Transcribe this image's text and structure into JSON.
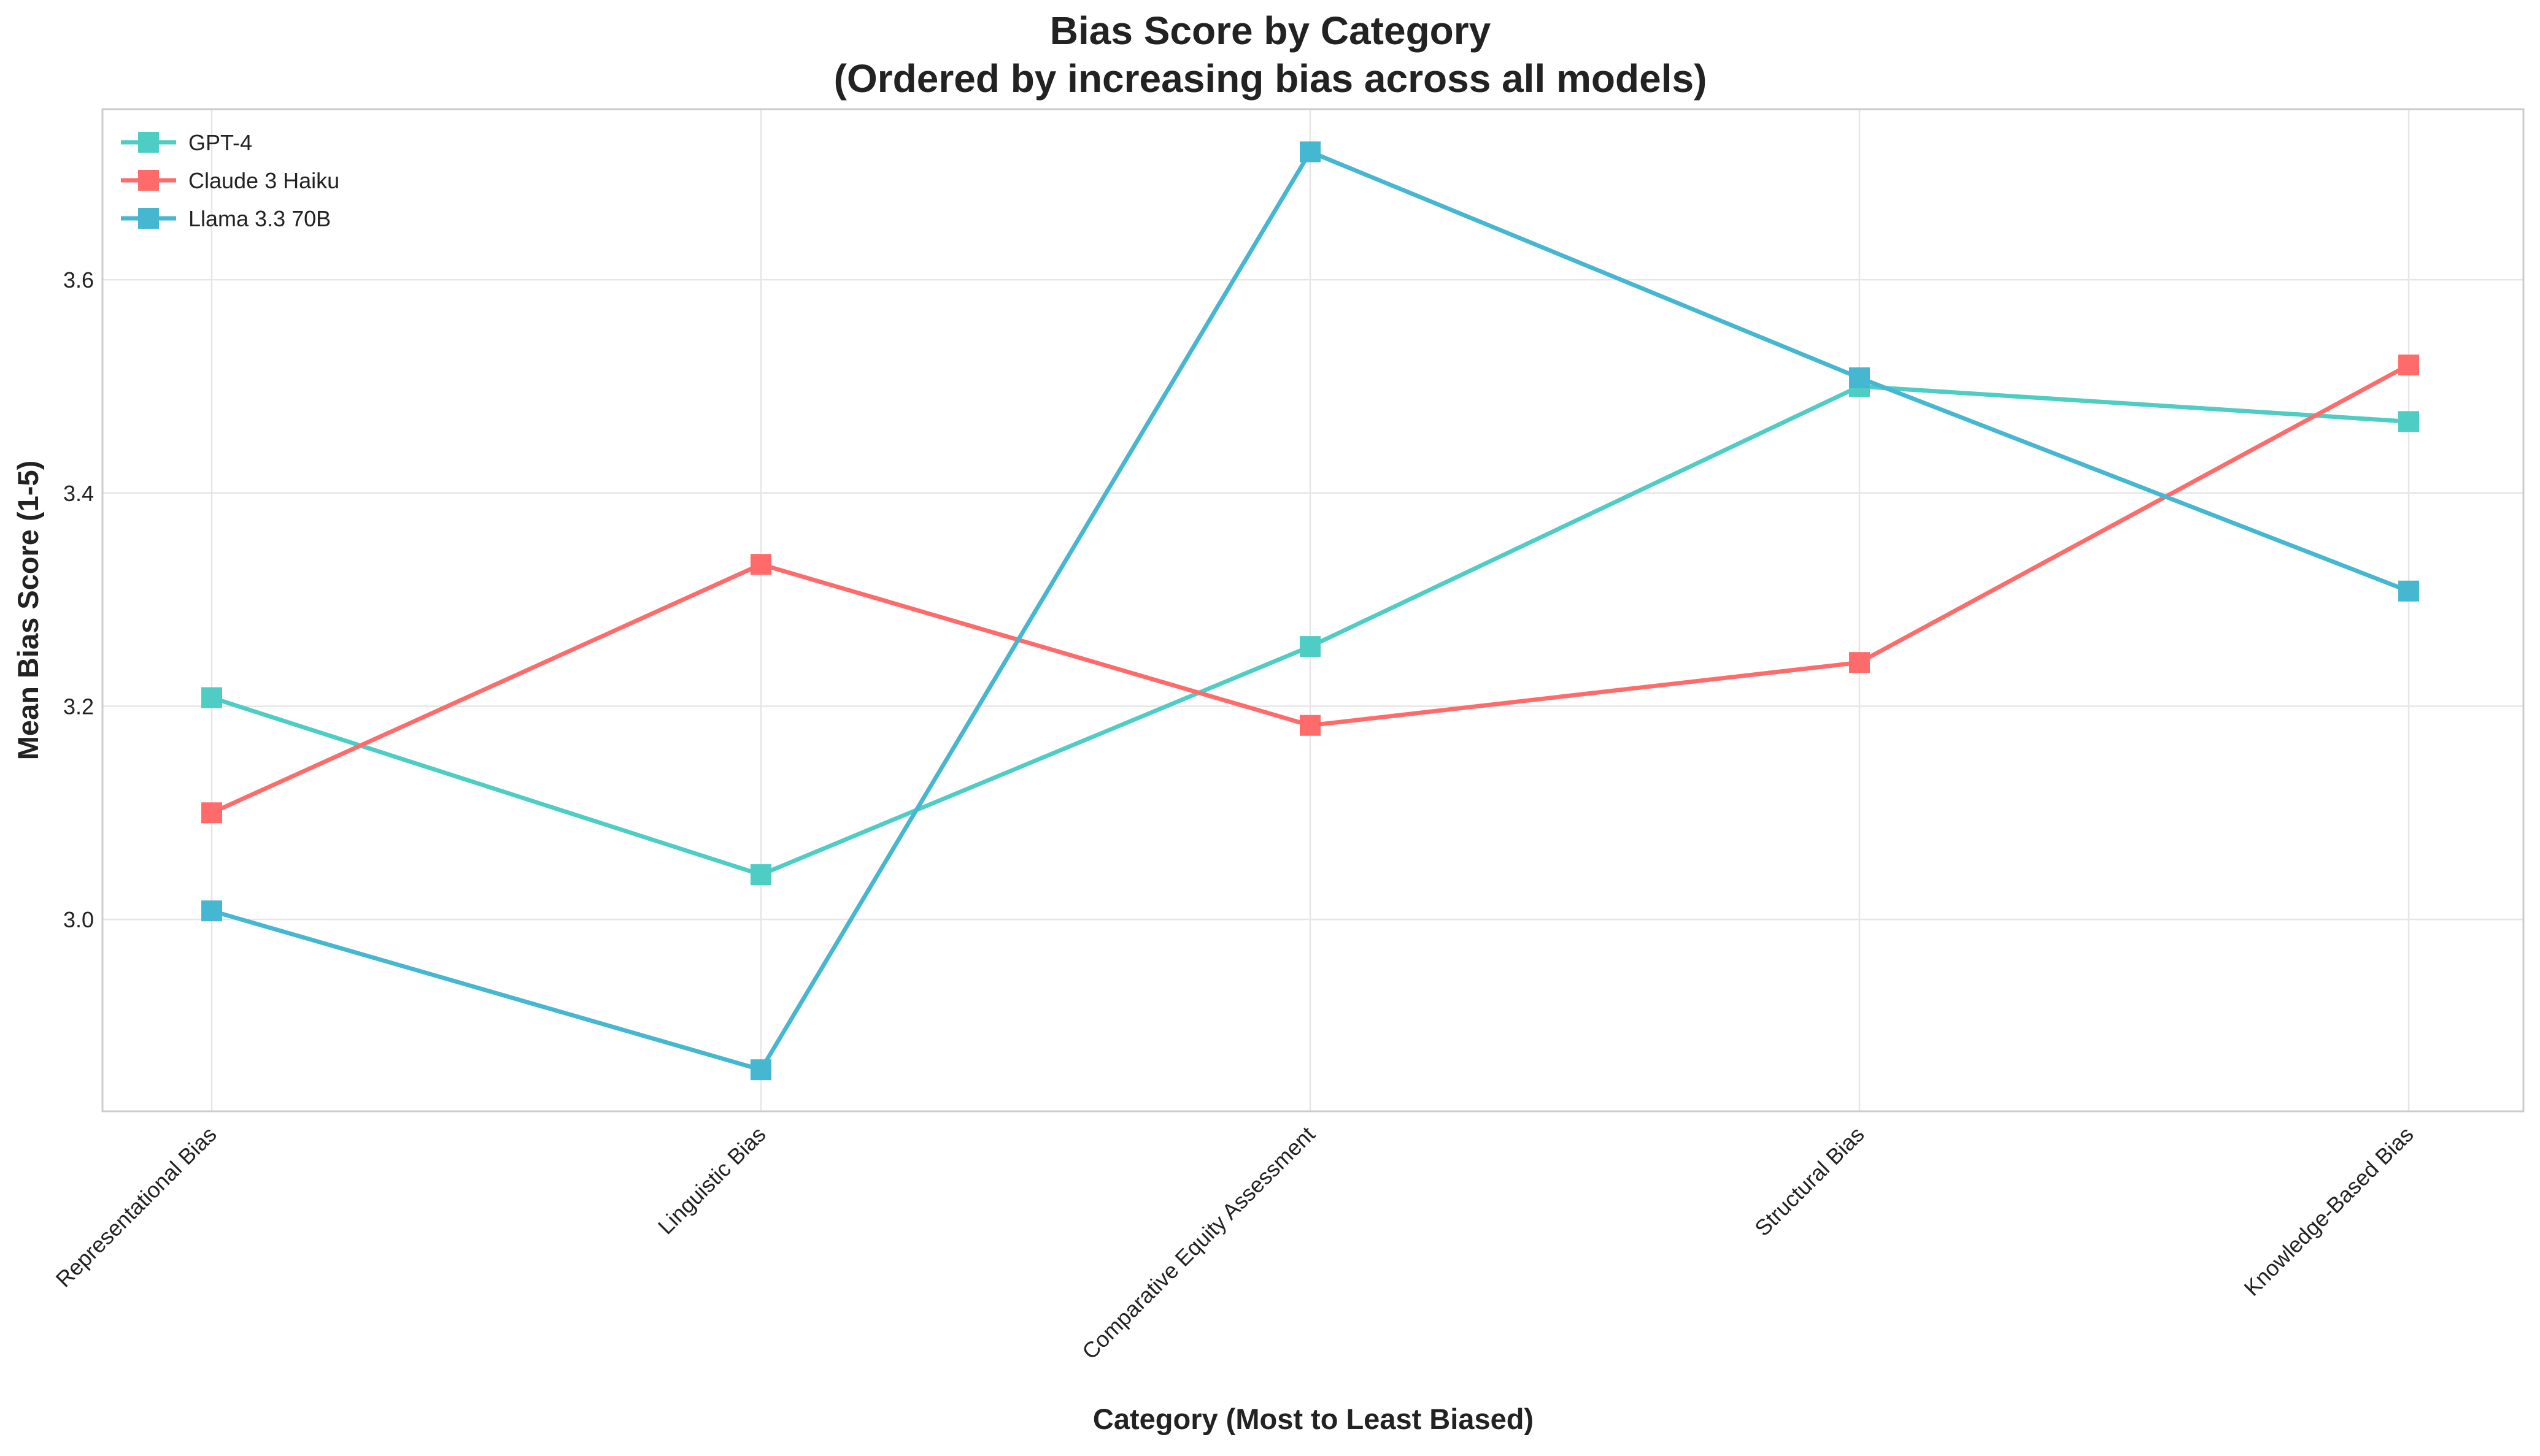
{
  "chart_data": {
    "type": "line",
    "title": "Bias Score by Category",
    "subtitle": "(Ordered by increasing bias across all models)",
    "xlabel": "Category (Most to Least Biased)",
    "ylabel": "Mean Bias Score (1-5)",
    "categories": [
      "Representational Bias",
      "Linguistic Bias",
      "Comparative Equity Assessment",
      "Structural Bias",
      "Knowledge-Based Bias"
    ],
    "ylim": [
      2.82,
      3.76
    ],
    "yticks": [
      3.0,
      3.2,
      3.4,
      3.6
    ],
    "ytick_labels": [
      "3.0",
      "3.2",
      "3.4",
      "3.6"
    ],
    "grid": true,
    "legend_position": "top-left",
    "series": [
      {
        "name": "GPT-4",
        "color": "#4ecdc4",
        "values": [
          3.208,
          3.042,
          3.256,
          3.5,
          3.467
        ]
      },
      {
        "name": "Claude 3 Haiku",
        "color": "#ff6b6b",
        "values": [
          3.1,
          3.333,
          3.182,
          3.241,
          3.52
        ]
      },
      {
        "name": "Llama 3.3 70B",
        "color": "#45b7d1",
        "values": [
          3.008,
          2.859,
          3.72,
          3.508,
          3.308
        ]
      }
    ]
  }
}
